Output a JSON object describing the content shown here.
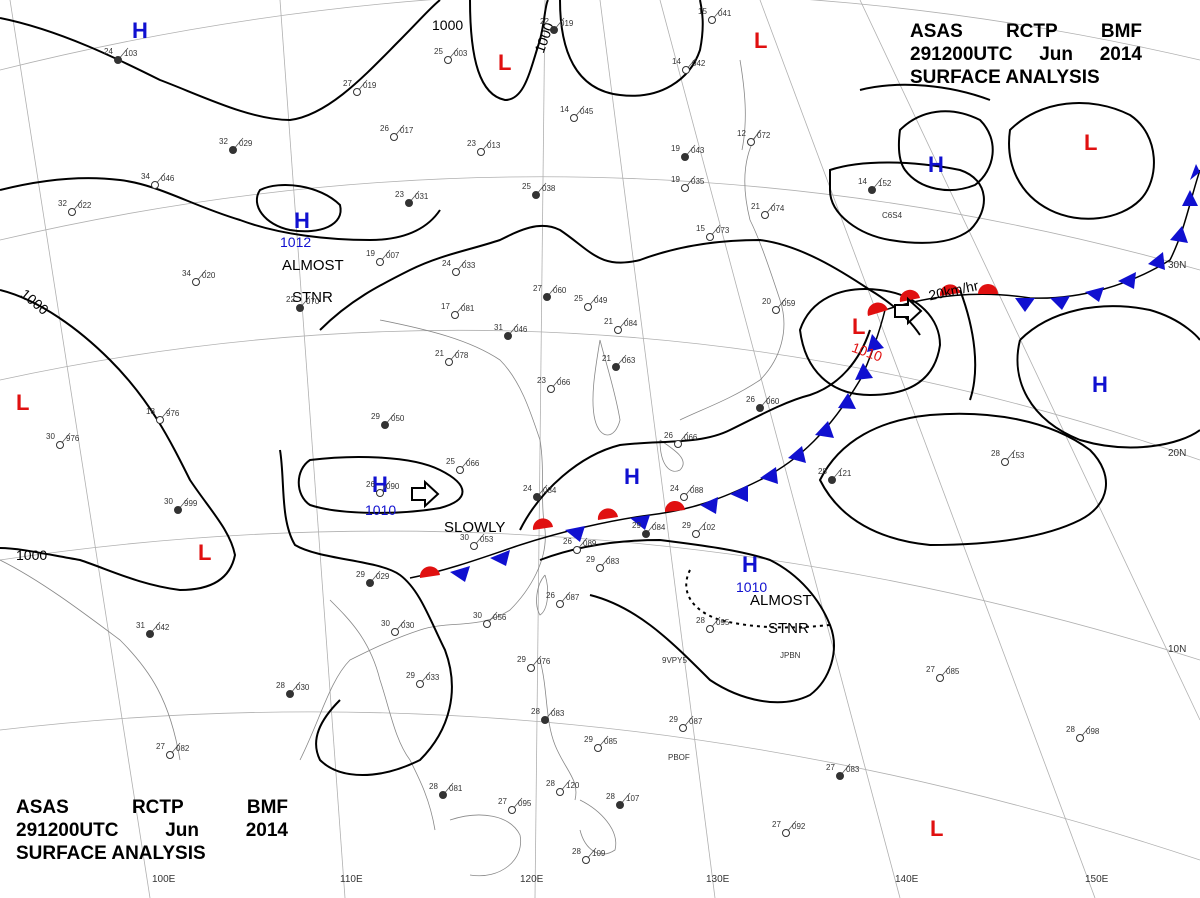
{
  "title": {
    "top": {
      "line1": [
        "ASAS",
        "RCTP",
        "BMF"
      ],
      "line2": [
        "291200UTC",
        "Jun",
        "2014"
      ],
      "line3": "SURFACE ANALYSIS"
    },
    "bottom": {
      "line1": [
        "ASAS",
        "RCTP",
        "BMF"
      ],
      "line2": [
        "291200UTC",
        "Jun",
        "2014"
      ],
      "line3": "SURFACE ANALYSIS"
    }
  },
  "colors": {
    "high": "#1010d0",
    "low": "#e01010",
    "warm_front": "#e01010",
    "cold_front": "#1010d0",
    "isobar": "#000000",
    "grid": "#b0b0b0",
    "coast": "#888888"
  },
  "longitudes": [
    "100E",
    "110E",
    "120E",
    "130E",
    "140E",
    "150E"
  ],
  "latitudes": [
    "30N",
    "20N",
    "10N"
  ],
  "isobar_labels": [
    "1000",
    "1000",
    "1000",
    "1000"
  ],
  "pressure_centers": [
    {
      "type": "H",
      "value": ""
    },
    {
      "type": "H",
      "value": "1012"
    },
    {
      "type": "H",
      "value": "1010"
    },
    {
      "type": "H",
      "value": ""
    },
    {
      "type": "H",
      "value": "1010"
    },
    {
      "type": "H",
      "value": ""
    },
    {
      "type": "H",
      "value": ""
    },
    {
      "type": "L",
      "value": ""
    },
    {
      "type": "L",
      "value": ""
    },
    {
      "type": "L",
      "value": ""
    },
    {
      "type": "L",
      "value": "1010"
    },
    {
      "type": "L",
      "value": ""
    },
    {
      "type": "L",
      "value": ""
    },
    {
      "type": "L",
      "value": ""
    }
  ],
  "annotations": {
    "almost_stnr_1": [
      "ALMOST",
      "STNR"
    ],
    "almost_stnr_2": [
      "ALMOST",
      "STNR"
    ],
    "slowly": "SLOWLY",
    "speed": "20km/hr"
  },
  "stations": [
    {
      "t": "24",
      "p": "103"
    },
    {
      "t": "27",
      "p": "019"
    },
    {
      "t": "26",
      "p": "017"
    },
    {
      "t": "32",
      "p": "029"
    },
    {
      "t": "34",
      "p": "046"
    },
    {
      "t": "32",
      "p": "022"
    },
    {
      "t": "23",
      "p": "031"
    },
    {
      "t": "19",
      "p": "007"
    },
    {
      "t": "24",
      "p": "033"
    },
    {
      "t": "22",
      "p": "070"
    },
    {
      "t": "34",
      "p": "020"
    },
    {
      "t": "25",
      "p": "003"
    },
    {
      "t": "22",
      "p": "019"
    },
    {
      "t": "14",
      "p": "045"
    },
    {
      "t": "23",
      "p": "013"
    },
    {
      "t": "25",
      "p": "038"
    },
    {
      "t": "15",
      "p": "041"
    },
    {
      "t": "14",
      "p": "042"
    },
    {
      "t": "19",
      "p": "043"
    },
    {
      "t": "19",
      "p": "035"
    },
    {
      "t": "12",
      "p": "072"
    },
    {
      "t": "14",
      "p": "152"
    },
    {
      "t": "15",
      "p": "073"
    },
    {
      "t": "21",
      "p": "074"
    },
    {
      "t": "27",
      "p": "060"
    },
    {
      "t": "25",
      "p": "049"
    },
    {
      "t": "17",
      "p": "081"
    },
    {
      "t": "31",
      "p": "046"
    },
    {
      "t": "21",
      "p": "078"
    },
    {
      "t": "21",
      "p": "084"
    },
    {
      "t": "21",
      "p": "063"
    },
    {
      "t": "20",
      "p": "059"
    },
    {
      "t": "23",
      "p": "066"
    },
    {
      "t": "29",
      "p": "050"
    },
    {
      "t": "18",
      "p": "976"
    },
    {
      "t": "30",
      "p": "976"
    },
    {
      "t": "30",
      "p": "999"
    },
    {
      "t": "25",
      "p": "066"
    },
    {
      "t": "26",
      "p": "090"
    },
    {
      "t": "24",
      "p": "084"
    },
    {
      "t": "24",
      "p": "088"
    },
    {
      "t": "26",
      "p": "066"
    },
    {
      "t": "26",
      "p": "060"
    },
    {
      "t": "30",
      "p": "053"
    },
    {
      "t": "26",
      "p": "089"
    },
    {
      "t": "29",
      "p": "084"
    },
    {
      "t": "29",
      "p": "102"
    },
    {
      "t": "29",
      "p": "083"
    },
    {
      "t": "29",
      "p": "029"
    },
    {
      "t": "26",
      "p": "087"
    },
    {
      "t": "30",
      "p": "056"
    },
    {
      "t": "31",
      "p": "042"
    },
    {
      "t": "30",
      "p": "030"
    },
    {
      "t": "29",
      "p": "033"
    },
    {
      "t": "28",
      "p": "030"
    },
    {
      "t": "28",
      "p": "095"
    },
    {
      "t": "29",
      "p": "076"
    },
    {
      "t": "28",
      "p": "083"
    },
    {
      "t": "29",
      "p": "087"
    },
    {
      "t": "29",
      "p": "085"
    },
    {
      "t": "28",
      "p": "081"
    },
    {
      "t": "27",
      "p": "095"
    },
    {
      "t": "28",
      "p": "120"
    },
    {
      "t": "28",
      "p": "107"
    },
    {
      "t": "28",
      "p": "109"
    },
    {
      "t": "27",
      "p": "082"
    },
    {
      "t": "28",
      "p": "121"
    },
    {
      "t": "28",
      "p": "153"
    },
    {
      "t": "27",
      "p": "085"
    },
    {
      "t": "27",
      "p": "083"
    },
    {
      "t": "27",
      "p": "092"
    },
    {
      "t": "28",
      "p": "098"
    }
  ],
  "station_ids": [
    "9VPY5",
    "JPBN",
    "PBOF",
    "C6S4"
  ]
}
